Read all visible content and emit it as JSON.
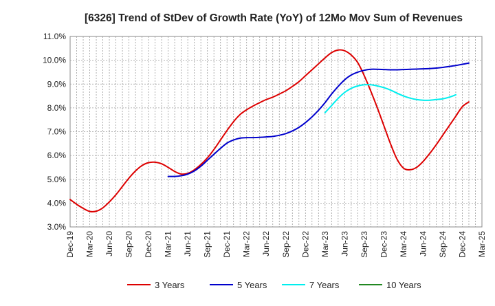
{
  "chart_data": {
    "type": "line",
    "title": "[6326]  Trend of StDev of Growth Rate (YoY) of 12Mo Mov Sum of Revenues",
    "xlabel": "",
    "ylabel": "",
    "ylim": [
      3.0,
      11.0
    ],
    "y_ticks": [
      3.0,
      4.0,
      5.0,
      6.0,
      7.0,
      8.0,
      9.0,
      10.0,
      11.0
    ],
    "y_tick_suffix": "%",
    "x_ticks": [
      "Dec-19",
      "Mar-20",
      "Jun-20",
      "Sep-20",
      "Dec-20",
      "Mar-21",
      "Jun-21",
      "Sep-21",
      "Dec-21",
      "Mar-22",
      "Jun-22",
      "Sep-22",
      "Dec-22",
      "Mar-23",
      "Jun-23",
      "Sep-23",
      "Dec-23",
      "Mar-24",
      "Jun-24",
      "Sep-24",
      "Dec-24",
      "Mar-25"
    ],
    "grid": true,
    "legend_position": "bottom",
    "series": [
      {
        "name": "3 Years",
        "color": "#dd0000",
        "start_month_index": 0,
        "values": [
          4.15,
          3.95,
          3.78,
          3.65,
          3.66,
          3.8,
          4.05,
          4.35,
          4.7,
          5.05,
          5.35,
          5.58,
          5.7,
          5.72,
          5.65,
          5.5,
          5.33,
          5.22,
          5.25,
          5.4,
          5.62,
          5.9,
          6.25,
          6.65,
          7.05,
          7.42,
          7.72,
          7.92,
          8.08,
          8.22,
          8.35,
          8.45,
          8.58,
          8.72,
          8.9,
          9.1,
          9.35,
          9.6,
          9.85,
          10.1,
          10.32,
          10.43,
          10.4,
          10.22,
          9.9,
          9.35,
          8.7,
          8.0,
          7.25,
          6.5,
          5.85,
          5.47,
          5.4,
          5.5,
          5.75,
          6.08,
          6.45,
          6.85,
          7.25,
          7.65,
          8.05,
          8.25
        ]
      },
      {
        "name": "5 Years",
        "color": "#0000cc",
        "start_month_index": 15,
        "values": [
          5.12,
          5.12,
          5.15,
          5.22,
          5.35,
          5.55,
          5.8,
          6.05,
          6.3,
          6.52,
          6.65,
          6.73,
          6.75,
          6.75,
          6.76,
          6.78,
          6.8,
          6.85,
          6.92,
          7.03,
          7.18,
          7.38,
          7.62,
          7.9,
          8.22,
          8.58,
          8.9,
          9.18,
          9.38,
          9.5,
          9.58,
          9.62,
          9.62,
          9.61,
          9.6,
          9.6,
          9.61,
          9.62,
          9.63,
          9.64,
          9.65,
          9.67,
          9.7,
          9.74,
          9.78,
          9.83,
          9.88
        ]
      },
      {
        "name": "7 Years",
        "color": "#00eeee",
        "start_month_index": 39,
        "values": [
          7.8,
          8.1,
          8.4,
          8.65,
          8.82,
          8.92,
          8.97,
          8.97,
          8.92,
          8.85,
          8.75,
          8.62,
          8.5,
          8.41,
          8.35,
          8.32,
          8.32,
          8.35,
          8.38,
          8.45,
          8.55
        ]
      },
      {
        "name": "10 Years",
        "color": "#228822",
        "start_month_index": 0,
        "values": []
      }
    ]
  }
}
